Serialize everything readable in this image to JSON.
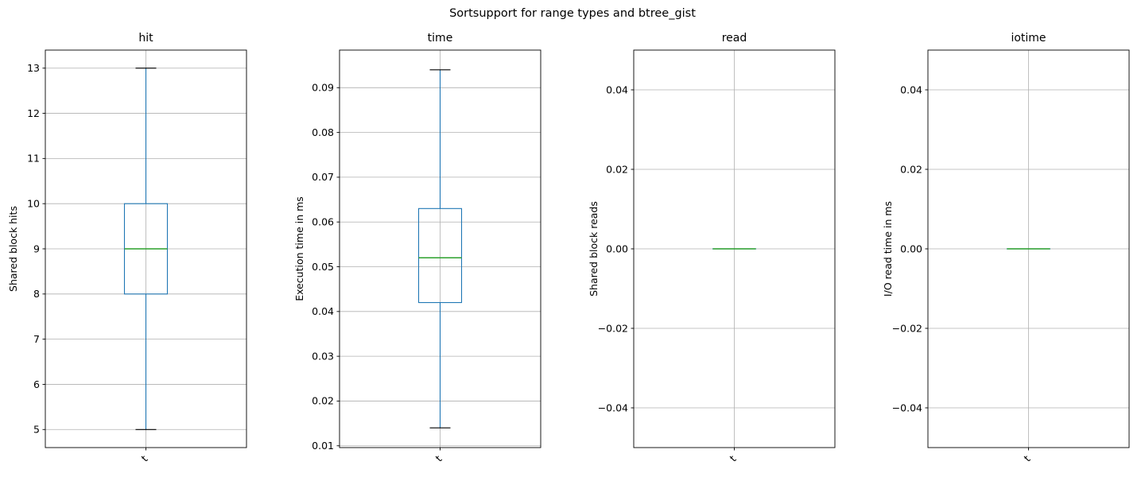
{
  "figure": {
    "title": "Sortsupport for range types and btree_gist"
  },
  "colors": {
    "box": "#1f77b4",
    "whisker": "#1f77b4",
    "median": "#2ca02c",
    "cap": "#000000",
    "grid": "#b0b0b0",
    "axes": "#000000",
    "text": "#000000"
  },
  "chart_data": [
    {
      "type": "box",
      "title": "hit",
      "ylabel": "Shared block hits",
      "xtick_label": "t",
      "ylim": [
        4.6,
        13.4
      ],
      "ytick_values": [
        5,
        6,
        7,
        8,
        9,
        10,
        11,
        12,
        13
      ],
      "ytick_labels": [
        "5",
        "6",
        "7",
        "8",
        "9",
        "10",
        "11",
        "12",
        "13"
      ],
      "box": {
        "whisker_low": 5,
        "q1": 8,
        "median": 9,
        "q3": 10,
        "whisker_high": 13
      }
    },
    {
      "type": "box",
      "title": "time",
      "ylabel": "Execution time in ms",
      "xtick_label": "t",
      "ylim": [
        0.0096,
        0.0984
      ],
      "ytick_values": [
        0.01,
        0.02,
        0.03,
        0.04,
        0.05,
        0.06,
        0.07,
        0.08,
        0.09
      ],
      "ytick_labels": [
        "0.01",
        "0.02",
        "0.03",
        "0.04",
        "0.05",
        "0.06",
        "0.07",
        "0.08",
        "0.09"
      ],
      "box": {
        "whisker_low": 0.014,
        "q1": 0.042,
        "median": 0.052,
        "q3": 0.063,
        "whisker_high": 0.094
      }
    },
    {
      "type": "box",
      "title": "read",
      "ylabel": "Shared block reads",
      "xtick_label": "t",
      "ylim": [
        -0.05,
        0.05
      ],
      "ytick_values": [
        -0.04,
        -0.02,
        0,
        0.02,
        0.04
      ],
      "ytick_labels": [
        "−0.04",
        "−0.02",
        "0.00",
        "0.02",
        "0.04"
      ],
      "box": {
        "whisker_low": 0,
        "q1": 0,
        "median": 0,
        "q3": 0,
        "whisker_high": 0
      }
    },
    {
      "type": "box",
      "title": "iotime",
      "ylabel": "I/O read time in ms",
      "xtick_label": "t",
      "ylim": [
        -0.05,
        0.05
      ],
      "ytick_values": [
        -0.04,
        -0.02,
        0,
        0.02,
        0.04
      ],
      "ytick_labels": [
        "−0.04",
        "−0.02",
        "0.00",
        "0.02",
        "0.04"
      ],
      "box": {
        "whisker_low": 0,
        "q1": 0,
        "median": 0,
        "q3": 0,
        "whisker_high": 0
      }
    }
  ]
}
